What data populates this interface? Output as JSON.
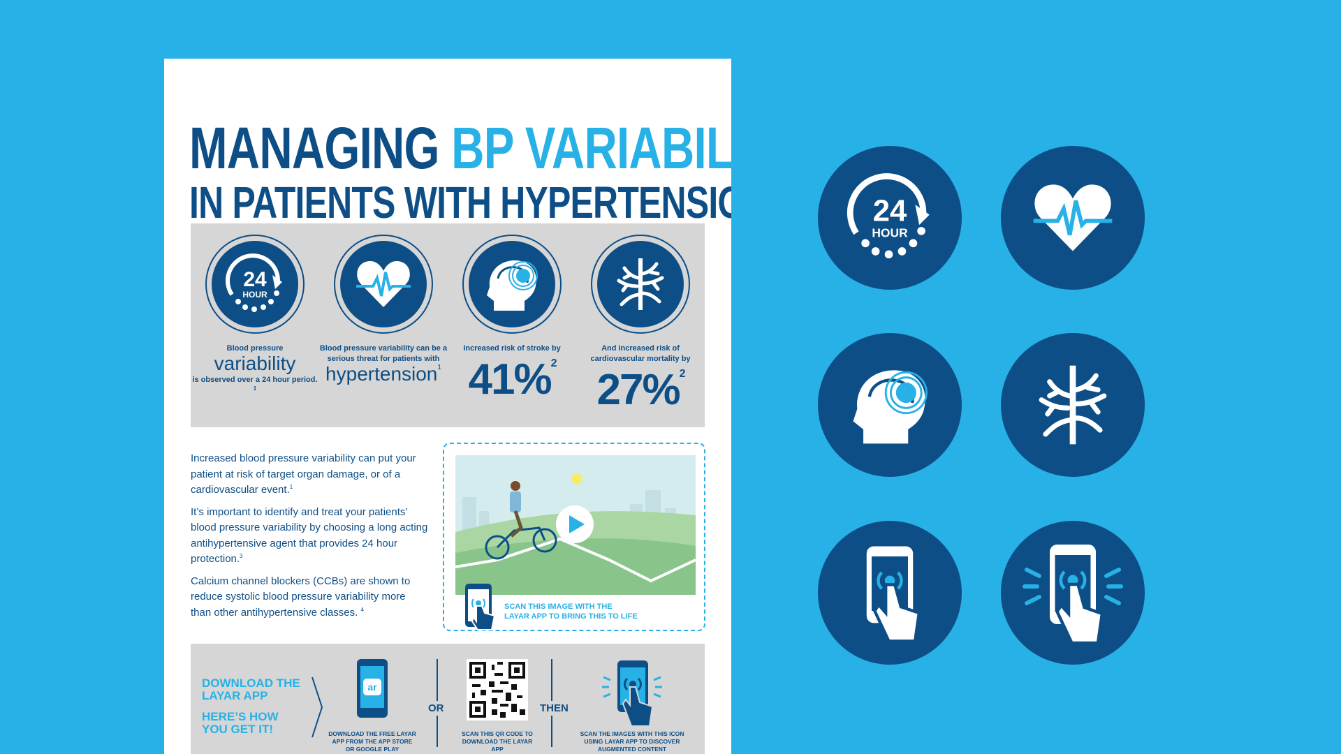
{
  "colors": {
    "background": "#27b1e6",
    "navy": "#0d4e86",
    "light_blue": "#27b1e6",
    "panel_gray": "#d6d6d6"
  },
  "title": {
    "line1_part1": "MANAGING",
    "line1_part2": "BP VARIABILITY",
    "line2": "IN PATIENTS WITH HYPERTENSION"
  },
  "stats": [
    {
      "icon": "24-hour-icon",
      "icon_big": "24",
      "icon_small": "HOUR",
      "pre": "Blood pressure",
      "emph": "variability",
      "post": "is observed over a 24 hour period.",
      "ref": "1"
    },
    {
      "icon": "heart-pulse-icon",
      "pre": "Blood pressure variability can be a serious threat for patients with",
      "emph": "hypertension",
      "ref": "1"
    },
    {
      "icon": "brain-head-icon",
      "pre": "Increased risk of stroke by",
      "value": "41%",
      "ref": "2"
    },
    {
      "icon": "blood-vessel-icon",
      "pre": "And increased risk of cardiovascular mortality by",
      "value": "27%",
      "ref": "2"
    }
  ],
  "body_paragraphs": [
    {
      "text": "Increased blood pressure variability can put your patient at risk of target organ damage, or of a cardiovascular event.",
      "ref": "1"
    },
    {
      "text": "It’s important to identify and treat your patients’ blood pressure variability by choosing a long acting antihypertensive agent that provides 24 hour protection.",
      "ref": "3"
    },
    {
      "text": "Calcium channel blockers (CCBs) are shown to reduce systolic blood pressure variability more than other antihypertensive classes.",
      "ref": "4"
    }
  ],
  "video": {
    "icon": "play-icon",
    "caption_line1": "SCAN THIS IMAGE WITH THE",
    "caption_line2": "LAYAR APP TO BRING THIS TO LIFE"
  },
  "download": {
    "head1": "DOWNLOAD THE LAYAR APP",
    "head2": "HERE’S HOW YOU GET IT!",
    "app_label": "ar",
    "or_label": "OR",
    "then_label": "THEN",
    "step1": "DOWNLOAD THE FREE LAYAR APP FROM THE APP STORE OR GOOGLE PLAY",
    "step2": "SCAN THIS QR CODE TO DOWNLOAD THE LAYAR APP",
    "step3": "SCAN THE IMAGES WITH THIS ICON USING LAYAR APP TO DISCOVER AUGMENTED CONTENT"
  },
  "large_icons": [
    {
      "icon": "24-hour-icon",
      "big": "24",
      "small": "HOUR"
    },
    {
      "icon": "heart-pulse-icon"
    },
    {
      "icon": "brain-head-icon"
    },
    {
      "icon": "blood-vessel-icon"
    },
    {
      "icon": "phone-scan-icon"
    },
    {
      "icon": "phone-scan-signal-icon"
    }
  ]
}
